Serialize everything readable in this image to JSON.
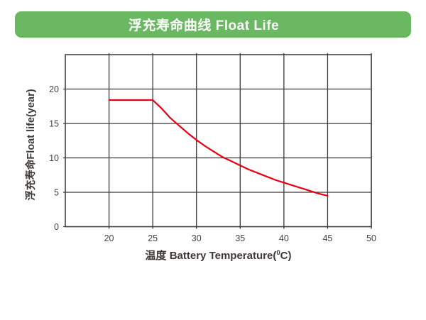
{
  "banner": {
    "title": "浮充寿命曲线 Float Life",
    "bg_color": "#6ab862",
    "text_color": "#ffffff"
  },
  "chart_data": {
    "type": "line",
    "title": "浮充寿命曲线 Float Life",
    "xlabel": {
      "text": "温度 Battery Temperature(0C)",
      "prefix": "温度 Battery Temperature(",
      "sup": "0",
      "suffix": "C)"
    },
    "ylabel": "浮充寿命Float life(year)",
    "x_ticks": [
      20,
      25,
      30,
      35,
      40,
      45,
      50
    ],
    "y_ticks": [
      0,
      5,
      10,
      15,
      20
    ],
    "xlim": [
      15,
      50
    ],
    "ylim": [
      0,
      25
    ],
    "grid": true,
    "legend": "none",
    "line_color": "#e60012",
    "grid_color": "#3d3637",
    "tick_label_color": "#474040",
    "series": [
      {
        "name": "Float Life",
        "x": [
          20,
          25,
          26,
          27,
          28,
          29,
          30,
          31,
          32,
          33,
          34,
          35,
          36,
          37,
          38,
          39,
          40,
          41,
          42,
          43,
          44,
          45
        ],
        "y": [
          18.4,
          18.4,
          17.2,
          15.8,
          14.7,
          13.6,
          12.6,
          11.7,
          10.9,
          10.1,
          9.5,
          8.9,
          8.3,
          7.8,
          7.3,
          6.8,
          6.4,
          6.0,
          5.6,
          5.2,
          4.8,
          4.5
        ]
      }
    ]
  }
}
